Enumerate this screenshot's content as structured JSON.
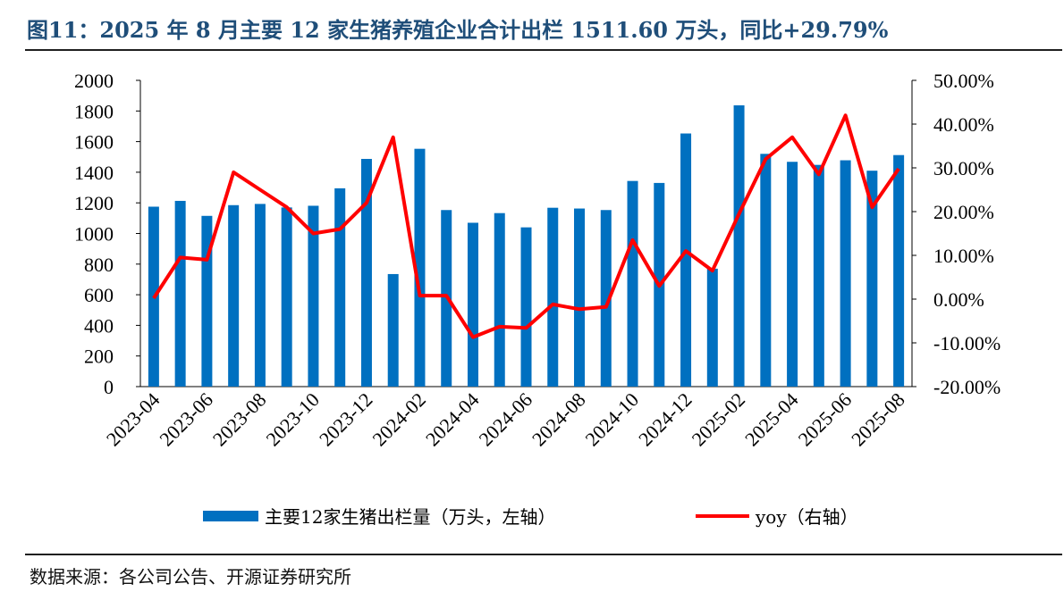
{
  "title": "图11：2025 年 8 月主要 12 家生猪养殖企业合计出栏 1511.60 万头，同比+29.79%",
  "source": "数据来源：各公司公告、开源证券研究所",
  "colors": {
    "bar": "#0070c0",
    "line": "#ff0000",
    "title": "#1f4e79"
  },
  "chart_data": {
    "type": "bar",
    "title": "",
    "x": [
      "2023-04",
      "2023-05",
      "2023-06",
      "2023-07",
      "2023-08",
      "2023-09",
      "2023-10",
      "2023-11",
      "2023-12",
      "2024-01",
      "2024-02",
      "2024-03",
      "2024-04",
      "2024-05",
      "2024-06",
      "2024-07",
      "2024-08",
      "2024-09",
      "2024-10",
      "2024-11",
      "2024-12",
      "2025-01",
      "2025-02",
      "2025-03",
      "2025-04",
      "2025-05",
      "2025-06",
      "2025-07",
      "2025-08"
    ],
    "x_tick_labels": [
      "2023-04",
      "2023-06",
      "2023-08",
      "2023-10",
      "2023-12",
      "2024-02",
      "2024-04",
      "2024-06",
      "2024-08",
      "2024-10",
      "2024-12",
      "2025-02",
      "2025-04",
      "2025-06",
      "2025-08"
    ],
    "y_left": {
      "min": 0,
      "max": 2000,
      "ticks": [
        "0",
        "200",
        "400",
        "600",
        "800",
        "1000",
        "1200",
        "1400",
        "1600",
        "1800",
        "2000"
      ]
    },
    "y_right": {
      "min": -20,
      "max": 50,
      "ticks": [
        "-20.00%",
        "-10.00%",
        "0.00%",
        "10.00%",
        "20.00%",
        "30.00%",
        "40.00%",
        "50.00%"
      ]
    },
    "series": [
      {
        "name": "主要12家生猪出栏量（万头，左轴）",
        "type": "bar",
        "axis": "left",
        "values": [
          1175,
          1213,
          1115,
          1185,
          1193,
          1170,
          1181,
          1295,
          1487,
          735,
          1553,
          1153,
          1070,
          1133,
          1040,
          1168,
          1163,
          1153,
          1343,
          1330,
          1653,
          770,
          1837,
          1520,
          1468,
          1448,
          1478,
          1410,
          1512
        ]
      },
      {
        "name": "yoy（右轴）",
        "type": "line",
        "axis": "right",
        "values": [
          0.2,
          9.5,
          9.0,
          29.0,
          25.0,
          21.0,
          15.0,
          16.0,
          22.0,
          37.0,
          0.8,
          0.8,
          -8.7,
          -6.3,
          -6.6,
          -1.2,
          -2.3,
          -1.8,
          13.5,
          3.0,
          11.0,
          6.5,
          19.5,
          32.0,
          37.0,
          28.5,
          42.0,
          21.0,
          29.79
        ]
      }
    ],
    "grid": false,
    "legend_position": "bottom"
  }
}
